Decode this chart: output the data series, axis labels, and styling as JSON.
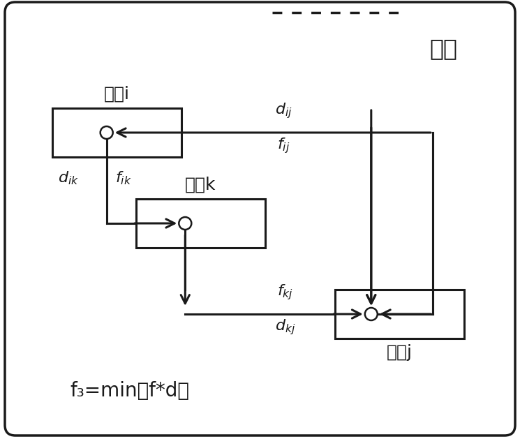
{
  "bg_color": "#ffffff",
  "border_color": "#1a1a1a",
  "box_color": "#ffffff",
  "box_edge_color": "#1a1a1a",
  "text_color": "#1a1a1a",
  "title": "大门",
  "formula": "f₃=min（f*d）",
  "facility_i_label": "设施i",
  "facility_k_label": "设施k",
  "facility_j_label": "设施j",
  "arrow_color": "#1a1a1a",
  "line_width": 2.2,
  "dpi": 100
}
